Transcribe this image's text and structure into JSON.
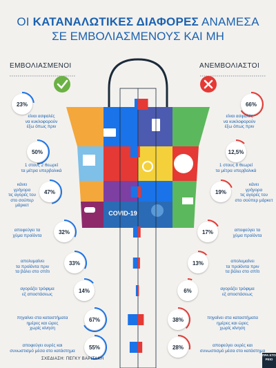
{
  "title": {
    "line1_prefix": "ΟΙ",
    "line1_bold": "ΚΑΤΑΝΑΛΩΤΙΚΕΣ ΔΙΑΦΟΡΕΣ",
    "line1_suffix": "ΑΝΑΜΕΣΑ",
    "line2": "ΣΕ ΕΜΒΟΛΙΑΣΜΕΝΟΥΣ ΚΑΙ ΜΗ"
  },
  "headers": {
    "vaccinated": "ΕΜΒΟΛΙΑΣΜΕΝΟΙ",
    "unvaccinated": "ΑΝΕΜΒΟΛΙΑΣΤΟΙ"
  },
  "colors": {
    "vaccinated": "#1a73e8",
    "unvaccinated": "#e53935",
    "check": "#6bb244",
    "cross": "#e53935",
    "stem": "#1b2a3a"
  },
  "bag_label": "COVID-19",
  "credit": "ΣΧΕΔΙΑΣΗ: ΠΕΓΚΥ ΒΑΡΙΤΑΚΗ",
  "logo_text": "ΠΡΑ ΚΤΟ ΡΕΙΟ",
  "chart_data": {
    "type": "bar",
    "title": "ΟΙ ΚΑΤΑΝΑΛΩΤΙΚΕΣ ΔΙΑΦΟΡΕΣ ΑΝΑΜΕΣΑ ΣΕ ΕΜΒΟΛΙΑΣΜΕΝΟΥΣ ΚΑΙ ΜΗ",
    "unit": "%",
    "series": [
      {
        "name": "ΕΜΒΟΛΙΑΣΜΕΝΟΙ",
        "values": [
          23,
          50,
          47,
          32,
          33,
          14,
          67,
          55
        ],
        "labels": [
          "23%",
          "50%",
          "47%",
          "32%",
          "33%",
          "14%",
          "67%",
          "55%"
        ]
      },
      {
        "name": "ΑΝΕΜΒΟΛΙΑΣΤΟΙ",
        "values": [
          66,
          12.5,
          19,
          17,
          13,
          6,
          38,
          28
        ],
        "labels": [
          "66%",
          "12,5%",
          "19%",
          "17%",
          "13%",
          "6%",
          "38%",
          "28%"
        ]
      }
    ],
    "categories": [
      {
        "vaccinated": [
          "είναι ασφαλές",
          "να κυκλοφορούν",
          "έξω όπως πριν"
        ],
        "unvaccinated": [
          "είναι ασφαλές",
          "να κυκλοφορούν",
          "έξω όπως πριν"
        ]
      },
      {
        "vaccinated": [
          "1 στους 2 θεωρεί",
          "τα μέτρα υπερβολικά"
        ],
        "unvaccinated": [
          "1 στους 8 θεωρεί",
          "τα μέτρα υπερβολικά"
        ]
      },
      {
        "vaccinated": [
          "κάνει",
          "γρήγορα",
          "τις αγορές του",
          "στο σούπερ μάρκετ"
        ],
        "unvaccinated": [
          "κάνει",
          "γρήγορα",
          "τις αγορές του",
          "στο σούπερ μάρκετ"
        ]
      },
      {
        "vaccinated": [
          "αποφεύγει τα",
          "χύμα προϊόντα"
        ],
        "unvaccinated": [
          "αποφεύγει τα",
          "χύμα προϊόντα"
        ]
      },
      {
        "vaccinated": [
          "απολυμαίνει",
          "τα προϊόντα πριν",
          "τα βάλει στο σπίτι"
        ],
        "unvaccinated": [
          "απολυμαίνει",
          "τα προϊόντα πριν",
          "τα βάλει στο σπίτι"
        ]
      },
      {
        "vaccinated": [
          "αγοράζει τρόφιμα",
          "εξ αποστάσεως"
        ],
        "unvaccinated": [
          "αγοράζει τρόφιμα",
          "εξ αποστάσεως"
        ]
      },
      {
        "vaccinated": [
          "πηγαίνει στα καταστήματα",
          "ημέρες και ώρες",
          "χωρίς κίνηση"
        ],
        "unvaccinated": [
          "πηγαίνει στα καταστήματα",
          "ημέρες και ώρες",
          "χωρίς κίνηση"
        ]
      },
      {
        "vaccinated": [
          "αποφεύγει ουρές και",
          "συνωστισμό μέσα στο κατάστημα"
        ],
        "unvaccinated": [
          "αποφεύγει ουρές και",
          "συνωστισμό μέσα στο κατάστημα"
        ]
      }
    ]
  }
}
